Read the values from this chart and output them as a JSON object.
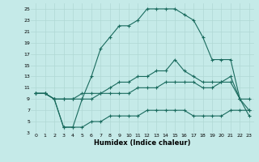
{
  "xlabel": "Humidex (Indice chaleur)",
  "bg_color": "#c5eae8",
  "line_color": "#1a6b5e",
  "grid_color": "#b0d8d4",
  "xlim": [
    -0.5,
    23.5
  ],
  "ylim": [
    3,
    26
  ],
  "xticks": [
    0,
    1,
    2,
    3,
    4,
    5,
    6,
    7,
    8,
    9,
    10,
    11,
    12,
    13,
    14,
    15,
    16,
    17,
    18,
    19,
    20,
    21,
    22,
    23
  ],
  "yticks": [
    3,
    5,
    7,
    9,
    11,
    13,
    15,
    17,
    19,
    21,
    23,
    25
  ],
  "line1_x": [
    0,
    1,
    2,
    3,
    4,
    5,
    6,
    7,
    8,
    9,
    10,
    11,
    12,
    13,
    14,
    15,
    16,
    17,
    18,
    19,
    20,
    21,
    22,
    23
  ],
  "line1_y": [
    10,
    10,
    9,
    4,
    4,
    9,
    13,
    18,
    20,
    22,
    22,
    23,
    25,
    25,
    25,
    25,
    24,
    23,
    20,
    16,
    16,
    16,
    9,
    9
  ],
  "line2_x": [
    0,
    1,
    2,
    3,
    4,
    5,
    6,
    7,
    8,
    9,
    10,
    11,
    12,
    13,
    14,
    15,
    16,
    17,
    18,
    19,
    20,
    21,
    22,
    23
  ],
  "line2_y": [
    10,
    10,
    9,
    9,
    9,
    10,
    10,
    10,
    11,
    12,
    12,
    13,
    13,
    14,
    14,
    16,
    14,
    13,
    12,
    12,
    12,
    13,
    9,
    7
  ],
  "line3_x": [
    0,
    1,
    2,
    3,
    4,
    5,
    6,
    7,
    8,
    9,
    10,
    11,
    12,
    13,
    14,
    15,
    16,
    17,
    18,
    19,
    20,
    21,
    22,
    23
  ],
  "line3_y": [
    10,
    10,
    9,
    9,
    9,
    9,
    9,
    10,
    10,
    10,
    10,
    11,
    11,
    11,
    12,
    12,
    12,
    12,
    11,
    11,
    12,
    12,
    9,
    6
  ],
  "line4_x": [
    0,
    1,
    2,
    3,
    4,
    5,
    6,
    7,
    8,
    9,
    10,
    11,
    12,
    13,
    14,
    15,
    16,
    17,
    18,
    19,
    20,
    21,
    22,
    23
  ],
  "line4_y": [
    10,
    10,
    9,
    4,
    4,
    4,
    5,
    5,
    6,
    6,
    6,
    6,
    7,
    7,
    7,
    7,
    7,
    6,
    6,
    6,
    6,
    7,
    7,
    7
  ]
}
